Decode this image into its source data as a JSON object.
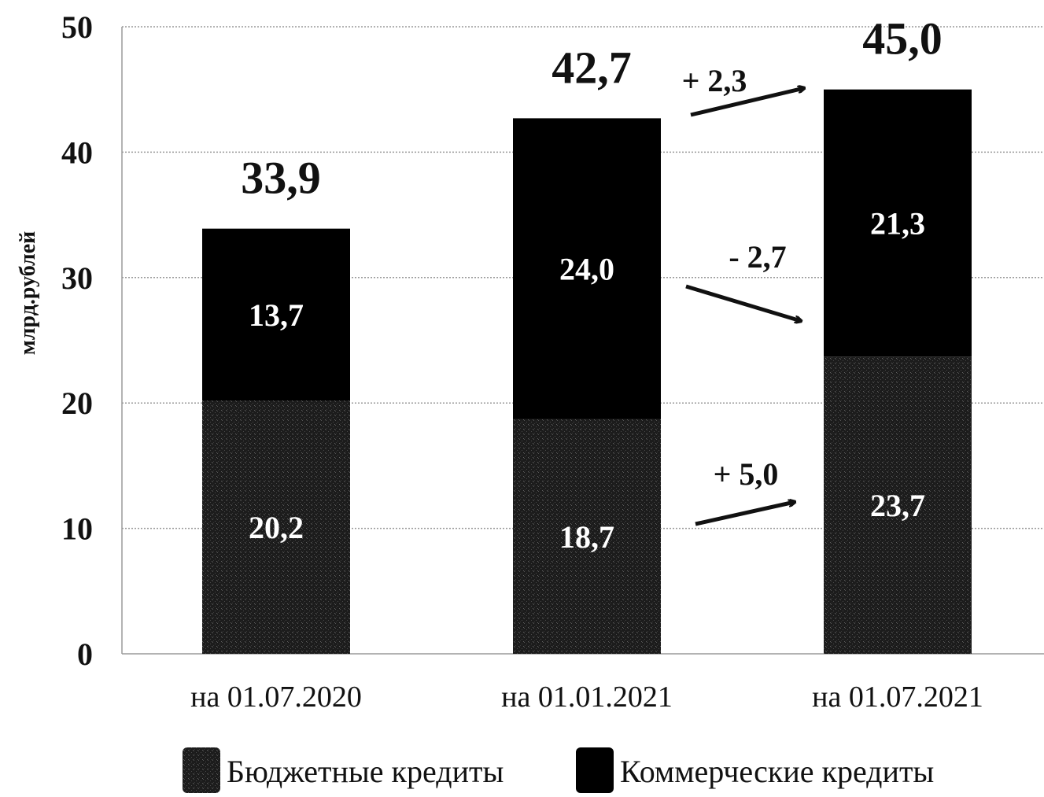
{
  "chart_data": {
    "type": "bar",
    "stacked": true,
    "categories": [
      "на 01.07.2020",
      "на 01.01.2021",
      "на 01.07.2021"
    ],
    "series": [
      {
        "name": "Бюджетные кредиты",
        "values": [
          20.2,
          18.7,
          23.7
        ],
        "labels": [
          "20,2",
          "18,7",
          "23,7"
        ],
        "color": "#1a1a1a"
      },
      {
        "name": "Коммерческие кредиты",
        "values": [
          13.7,
          24.0,
          21.3
        ],
        "labels": [
          "13,7",
          "24,0",
          "21,3"
        ],
        "color": "#000000"
      }
    ],
    "totals": [
      33.9,
      42.7,
      45.0
    ],
    "total_labels": [
      "33,9",
      "42,7",
      "45,0"
    ],
    "changes": [
      {
        "text": "+ 2,3"
      },
      {
        "text": "- 2,7"
      },
      {
        "text": "+ 5,0"
      }
    ],
    "ylabel": "млрд.рублей",
    "ylim": [
      0,
      50
    ],
    "yticks": [
      0,
      10,
      20,
      30,
      40,
      50
    ],
    "grid": true,
    "legend_position": "bottom"
  }
}
